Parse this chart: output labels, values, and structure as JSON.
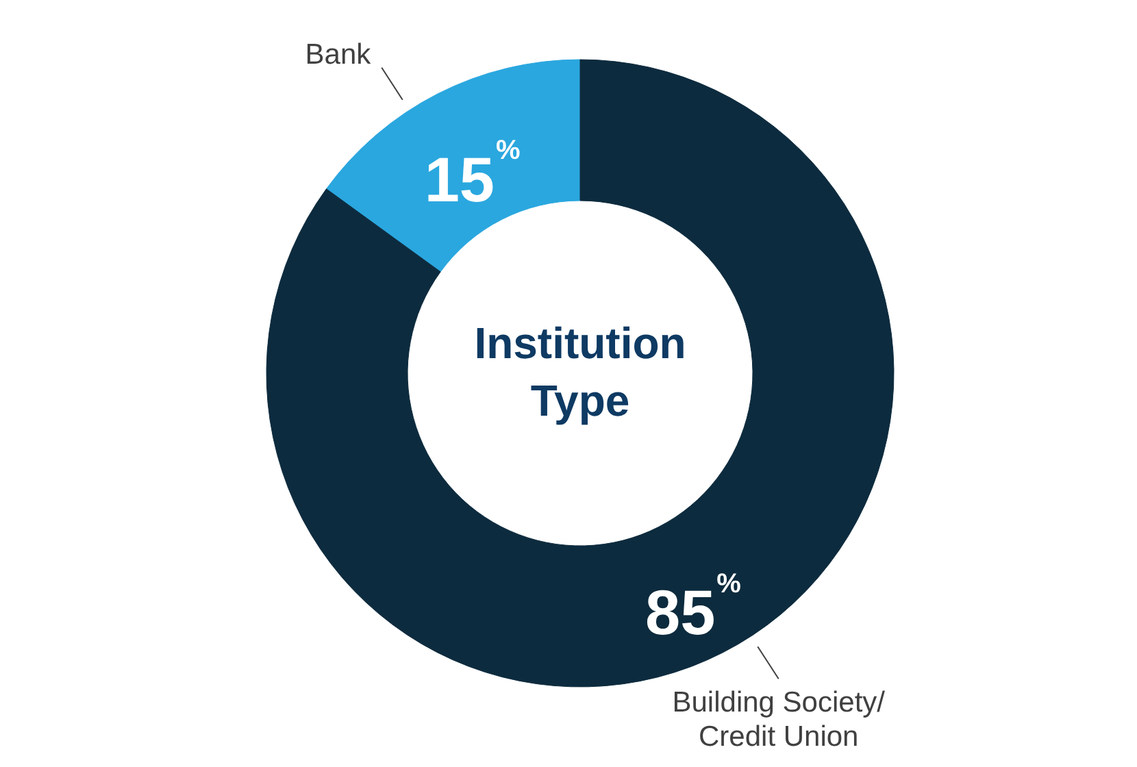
{
  "chart_data": {
    "type": "donut",
    "title": "Institution Type",
    "categories": [
      "Bank",
      "Building Society/ Credit Union"
    ],
    "values": [
      15,
      85
    ],
    "colors": [
      "#2aa7df",
      "#0d2b3e"
    ],
    "value_labels": [
      "15$^{%}$",
      "85$^{%}$"
    ]
  }
}
